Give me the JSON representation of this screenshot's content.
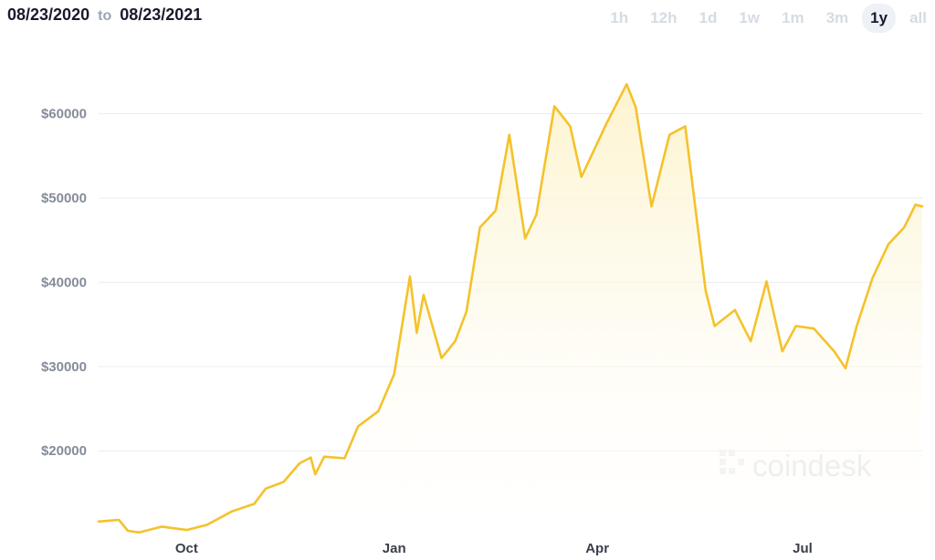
{
  "header": {
    "from": "08/23/2020",
    "to_label": "to",
    "to": "08/23/2021"
  },
  "timeframes": [
    {
      "label": "1h",
      "active": false
    },
    {
      "label": "12h",
      "active": false
    },
    {
      "label": "1d",
      "active": false
    },
    {
      "label": "1w",
      "active": false
    },
    {
      "label": "1m",
      "active": false
    },
    {
      "label": "3m",
      "active": false
    },
    {
      "label": "1y",
      "active": true
    },
    {
      "label": "all",
      "active": false
    }
  ],
  "watermark": {
    "text": "coindesk"
  },
  "colors": {
    "line": "#f4c22b",
    "fill_top": "#fdf3cc",
    "grid": "#e9ecef"
  },
  "chart_data": {
    "type": "area",
    "title": "",
    "xlabel": "",
    "ylabel": "",
    "x_ticks": [
      "Oct",
      "Jan",
      "Apr",
      "Jul"
    ],
    "y_ticks": [
      "$20000",
      "$30000",
      "$40000",
      "$50000",
      "$60000"
    ],
    "y_tick_values": [
      20000,
      30000,
      40000,
      50000,
      60000
    ],
    "ylim": [
      10500,
      67000
    ],
    "xlim": [
      "2020-08-23",
      "2021-08-23"
    ],
    "grid": true,
    "series": [
      {
        "name": "",
        "x": [
          "2020-08-23",
          "2020-09-01",
          "2020-09-05",
          "2020-09-10",
          "2020-09-20",
          "2020-10-01",
          "2020-10-10",
          "2020-10-21",
          "2020-10-31",
          "2020-11-05",
          "2020-11-13",
          "2020-11-20",
          "2020-11-25",
          "2020-11-27",
          "2020-12-01",
          "2020-12-10",
          "2020-12-16",
          "2020-12-25",
          "2021-01-01",
          "2021-01-08",
          "2021-01-11",
          "2021-01-14",
          "2021-01-22",
          "2021-01-28",
          "2021-02-02",
          "2021-02-08",
          "2021-02-15",
          "2021-02-21",
          "2021-02-28",
          "2021-03-05",
          "2021-03-13",
          "2021-03-20",
          "2021-03-25",
          "2021-04-05",
          "2021-04-14",
          "2021-04-18",
          "2021-04-25",
          "2021-05-03",
          "2021-05-10",
          "2021-05-19",
          "2021-05-23",
          "2021-06-01",
          "2021-06-08",
          "2021-06-15",
          "2021-06-22",
          "2021-06-28",
          "2021-07-06",
          "2021-07-15",
          "2021-07-20",
          "2021-07-25",
          "2021-08-01",
          "2021-08-08",
          "2021-08-15",
          "2021-08-20",
          "2021-08-23"
        ],
        "values": [
          11600,
          11800,
          10500,
          10300,
          11000,
          10600,
          11200,
          12800,
          13700,
          15500,
          16300,
          18500,
          19200,
          17200,
          19300,
          19100,
          22900,
          24700,
          29100,
          40700,
          34000,
          38500,
          31000,
          33000,
          36500,
          46500,
          48500,
          57500,
          45200,
          48000,
          60900,
          58500,
          52500,
          58800,
          63500,
          60800,
          49000,
          57500,
          58500,
          39000,
          34800,
          36700,
          33000,
          40100,
          31800,
          34800,
          34500,
          31800,
          29800,
          34800,
          40500,
          44500,
          46500,
          49200,
          49000
        ]
      }
    ]
  }
}
